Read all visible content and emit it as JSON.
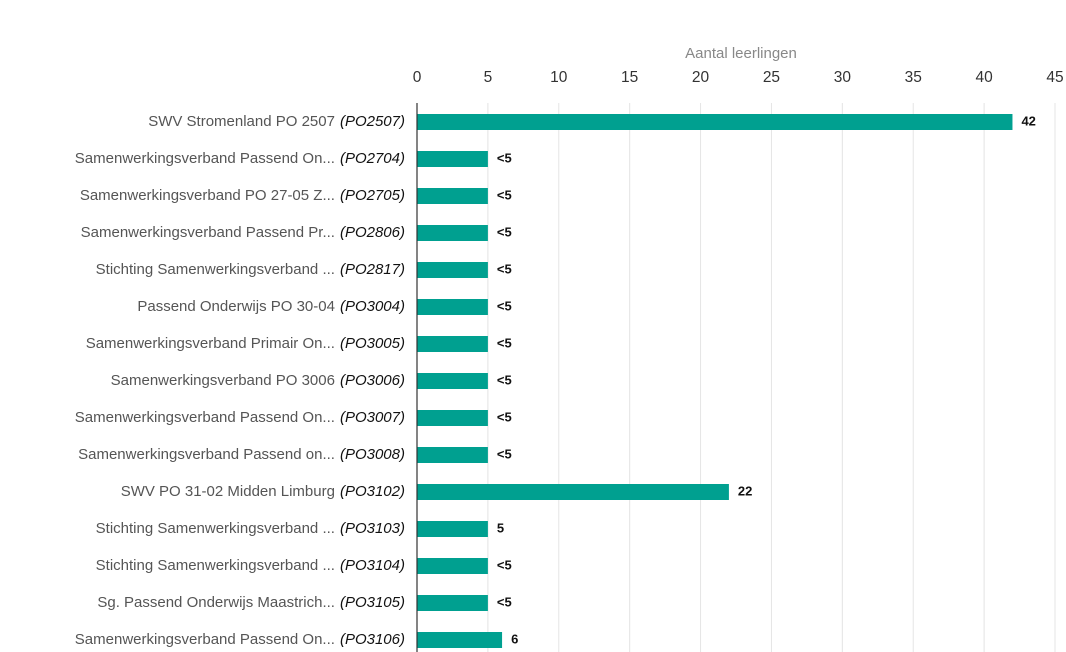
{
  "chart_data": {
    "type": "hbar",
    "axis_title": "Aantal leerlingen",
    "categories": [
      "SWV Stromenland PO 2507",
      "Samenwerkingsverband Passend On...",
      "Samenwerkingsverband PO 27-05 Z...",
      "Samenwerkingsverband Passend Pr...",
      "Stichting Samenwerkingsverband ...",
      "Passend Onderwijs PO 30-04",
      "Samenwerkingsverband Primair On...",
      "Samenwerkingsverband PO 3006",
      "Samenwerkingsverband Passend On...",
      "Samenwerkingsverband Passend on...",
      "SWV PO 31-02 Midden Limburg",
      "Stichting Samenwerkingsverband ...",
      "Stichting Samenwerkingsverband ...",
      "Sg. Passend Onderwijs Maastrich...",
      "Samenwerkingsverband Passend On..."
    ],
    "codes": [
      "(PO2507)",
      "(PO2704)",
      "(PO2705)",
      "(PO2806)",
      "(PO2817)",
      "(PO3004)",
      "(PO3005)",
      "(PO3006)",
      "(PO3007)",
      "(PO3008)",
      "(PO3102)",
      "(PO3103)",
      "(PO3104)",
      "(PO3105)",
      "(PO3106)"
    ],
    "values": [
      42,
      5,
      5,
      5,
      5,
      5,
      5,
      5,
      5,
      5,
      22,
      5,
      5,
      5,
      6
    ],
    "value_labels": [
      "42",
      "<5",
      "<5",
      "<5",
      "<5",
      "<5",
      "<5",
      "<5",
      "<5",
      "<5",
      "22",
      "5",
      "<5",
      "<5",
      "6"
    ],
    "color": "#00a090",
    "xlim": [
      0,
      45
    ],
    "xticks": [
      0,
      5,
      10,
      15,
      20,
      25,
      30,
      35,
      40,
      45
    ],
    "grid": true
  }
}
